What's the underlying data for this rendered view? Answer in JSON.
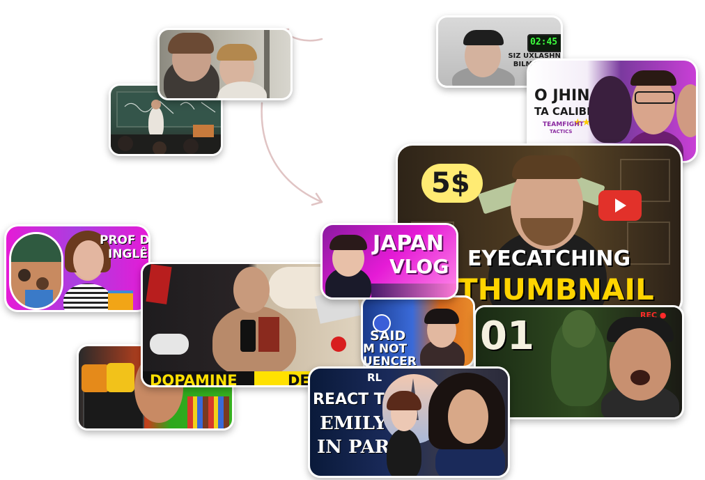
{
  "thumbnails": {
    "classroom_film": {
      "caption": ""
    },
    "lecture_hall": {
      "caption": ""
    },
    "sleep_timer": {
      "timer": "02:45",
      "caption": "SIZ UXLASHNI BILMAYSIZ!"
    },
    "tft_jhin": {
      "title_line1": "O JHIN",
      "title_line2": "TA CALIBRADO",
      "brand_line1": "TEAMFIGHT",
      "brand_line2": "TACTICS",
      "stars": "★★★"
    },
    "eyecatching": {
      "price": "5$",
      "line1": "EYECATCHING",
      "line2": "THUMBNAIL"
    },
    "prof_ingles": {
      "line1": "PROF DE",
      "line2": "INGLÊS"
    },
    "japan_vlog": {
      "line1": "JAPAN",
      "line2": "VLOG"
    },
    "dopamine_detox": {
      "left_label": "DOPAMINE",
      "right_label": "DETOX"
    },
    "influencer": {
      "line1": "SAID",
      "line2": "M NOT",
      "line3": "UENCER"
    },
    "horror": {
      "number": "01",
      "rec": "REC ●"
    },
    "snacks": {
      "caption": ""
    },
    "emily": {
      "line1": "REACT TO",
      "line2": "EMILY",
      "line3": "IN PARIS",
      "tag": "RL"
    }
  },
  "colors": {
    "arrow": "#e0c4c4",
    "eyecatching_yellow": "#ffd400",
    "pink": "#e51bd6",
    "timer_green": "#3dff3d",
    "dopamine_yellow": "#ffe100"
  }
}
